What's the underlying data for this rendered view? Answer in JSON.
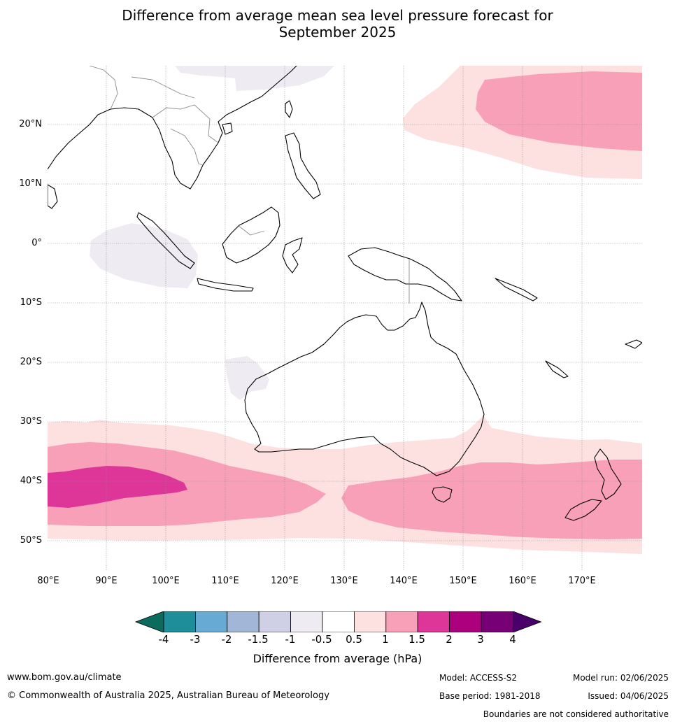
{
  "title_line1": "Difference from average mean sea level pressure forecast for",
  "title_line2": "September 2025",
  "lat_labels": [
    "20°N",
    "10°N",
    "0°",
    "10°S",
    "20°S",
    "30°S",
    "40°S",
    "50°S"
  ],
  "lon_labels": [
    "80°E",
    "90°E",
    "100°E",
    "110°E",
    "120°E",
    "130°E",
    "140°E",
    "150°E",
    "160°E",
    "170°E"
  ],
  "colorbar": {
    "ticks": [
      "-4",
      "-3",
      "-2",
      "-1.5",
      "-1",
      "-0.5",
      "0.5",
      "1",
      "1.5",
      "2",
      "3",
      "4"
    ],
    "colors": [
      "#0d6b5e",
      "#1e8f9a",
      "#67aad3",
      "#a2b7d8",
      "#cfd0e6",
      "#efebf2",
      "#ffffff",
      "#fde0e0",
      "#f8a0b8",
      "#de3698",
      "#ad007e",
      "#780077",
      "#4a006a"
    ],
    "label": "Difference from average (hPa)"
  },
  "footer": {
    "website": "www.bom.gov.au/climate",
    "copyright": "© Commonwealth of Australia 2025, Australian Bureau of Meteorology",
    "model": "Model: ACCESS-S2",
    "base_period": "Base period: 1981-2018",
    "model_run": "Model run: 02/06/2025",
    "issued": "Issued: 04/06/2025",
    "disclaimer": "Boundaries are not considered authoritative"
  }
}
